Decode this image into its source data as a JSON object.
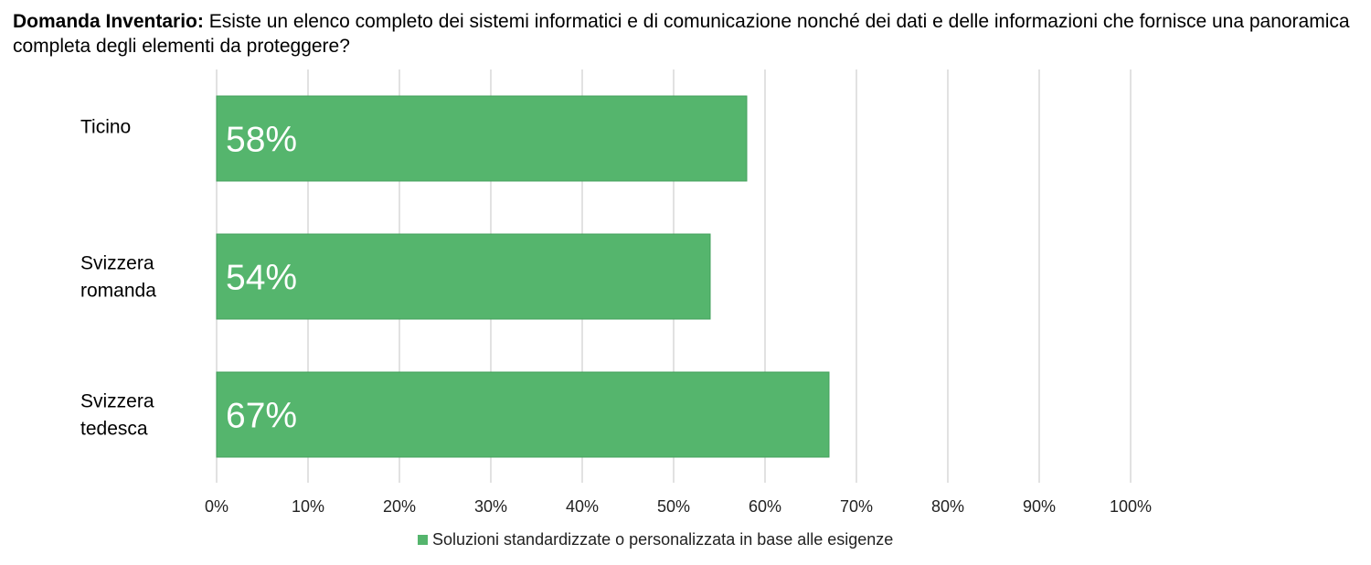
{
  "title": {
    "prefix": "Domanda Inventario:",
    "text": "Esiste un elenco completo dei sistemi informatici e di comunicazione nonché dei dati e delle informazioni che fornisce una panoramica completa degli elementi da proteggere?"
  },
  "colors": {
    "bar": "#55b56d",
    "bar_border": "#43a05c",
    "grid": "#d9d9d9",
    "label": "#000000",
    "tick": "#222222",
    "data_label": "#ffffff"
  },
  "chart_data": {
    "type": "bar",
    "orientation": "horizontal",
    "categories": [
      [
        "Ticino"
      ],
      [
        "Svizzera",
        "romanda"
      ],
      [
        "Svizzera",
        "tedesca"
      ]
    ],
    "series": [
      {
        "name": "Soluzioni standardizzate o personalizzata in base alle esigenze",
        "values": [
          58,
          54,
          67
        ],
        "data_labels": [
          "58%",
          "54%",
          "67%"
        ]
      }
    ],
    "xlim": [
      0,
      100
    ],
    "xticks": [
      "0%",
      "10%",
      "20%",
      "30%",
      "40%",
      "50%",
      "60%",
      "70%",
      "80%",
      "90%",
      "100%"
    ],
    "grid": true,
    "legend_position": "bottom"
  }
}
